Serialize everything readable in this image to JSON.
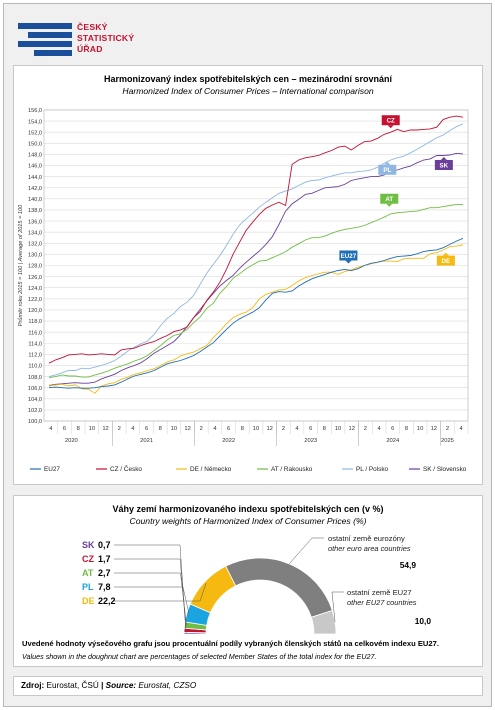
{
  "logo": {
    "lines": [
      "ČESKÝ",
      "STATISTICKÝ",
      "ÚŘAD"
    ]
  },
  "chart_data": [
    {
      "type": "line",
      "title": "Harmonizovaný index spotřebitelských cen – mezinárodní srovnání",
      "subtitle": "Harmonized Index of Consumer Prices – International comparison",
      "ylabel": "Průměr roku 2015 = 100 | Average of 2015 = 100",
      "ylim": [
        100,
        156
      ],
      "yticks": [
        "100,0",
        "102,0",
        "104,0",
        "106,0",
        "108,0",
        "110,0",
        "112,0",
        "114,0",
        "116,0",
        "118,0",
        "120,0",
        "122,0",
        "124,0",
        "126,0",
        "128,0",
        "130,0",
        "132,0",
        "134,0",
        "136,0",
        "138,0",
        "140,0",
        "142,0",
        "144,0",
        "146,0",
        "148,0",
        "150,0",
        "152,0",
        "154,0",
        "156,0"
      ],
      "x_month_labels": [
        "4",
        "6",
        "8",
        "10",
        "12",
        "2",
        "4",
        "6",
        "8",
        "10",
        "12",
        "2",
        "4",
        "6",
        "8",
        "10",
        "12",
        "2",
        "4",
        "6",
        "8",
        "10",
        "12",
        "2",
        "4",
        "6",
        "8",
        "10",
        "12",
        "2",
        "4"
      ],
      "years": [
        "2020",
        "2021",
        "2022",
        "2023",
        "2024",
        "2025"
      ],
      "grid": true,
      "legend_position": "bottom",
      "series": [
        {
          "name": "EU27",
          "short": "EU27",
          "color": "#1f6fb5",
          "values": [
            106.0,
            106.1,
            106.0,
            105.9,
            106.0,
            105.9,
            105.9,
            106.0,
            106.2,
            106.3,
            106.5,
            107.0,
            107.6,
            108.1,
            108.4,
            108.7,
            109.1,
            109.7,
            110.3,
            110.6,
            110.9,
            111.3,
            111.8,
            112.5,
            113.3,
            114.1,
            115.3,
            116.5,
            117.6,
            118.4,
            119.0,
            119.6,
            120.4,
            121.8,
            123.0,
            123.3,
            123.2,
            123.4,
            124.3,
            125.0,
            125.6,
            126.0,
            126.4,
            126.8,
            127.1,
            127.3,
            127.1,
            127.4,
            128.0,
            128.4,
            128.6,
            128.9,
            129.3,
            129.6,
            129.7,
            129.8,
            130.1,
            130.5,
            130.7,
            130.8,
            131.2,
            131.8,
            132.4,
            132.9
          ]
        },
        {
          "name": "CZ / Česko",
          "short": "CZ",
          "color": "#c41230",
          "values": [
            110.4,
            111.0,
            111.4,
            111.9,
            112.0,
            112.1,
            111.9,
            112.0,
            112.1,
            112.0,
            111.9,
            112.8,
            113.0,
            113.1,
            113.6,
            114.0,
            114.3,
            114.9,
            115.4,
            116.1,
            116.4,
            116.9,
            118.6,
            119.7,
            121.7,
            123.2,
            125.0,
            127.3,
            130.0,
            132.2,
            134.3,
            135.8,
            137.2,
            138.3,
            138.9,
            139.4,
            138.8,
            146.2,
            147.0,
            147.4,
            147.6,
            147.8,
            148.3,
            148.7,
            149.3,
            149.5,
            148.8,
            149.6,
            150.3,
            150.4,
            150.9,
            151.6,
            152.0,
            152.5,
            152.1,
            152.4,
            152.4,
            152.5,
            152.6,
            152.9,
            154.3,
            154.7,
            154.9,
            154.7
          ]
        },
        {
          "name": "DE / Německo",
          "short": "DE",
          "color": "#f6b90f",
          "values": [
            106.3,
            106.5,
            106.6,
            106.3,
            106.5,
            105.8,
            105.7,
            105.0,
            106.3,
            106.7,
            106.9,
            107.5,
            107.9,
            108.4,
            108.7,
            109.1,
            109.4,
            110.0,
            110.6,
            111.0,
            111.7,
            112.1,
            112.4,
            113.0,
            113.6,
            115.0,
            116.2,
            117.5,
            118.6,
            119.2,
            119.6,
            120.4,
            122.0,
            122.8,
            123.2,
            123.6,
            123.7,
            124.4,
            125.2,
            125.8,
            126.2,
            126.5,
            126.8,
            126.8,
            126.4,
            126.9,
            127.2,
            127.7,
            128.0,
            128.3,
            128.6,
            128.8,
            128.8,
            128.7,
            129.2,
            129.3,
            129.3,
            129.3,
            130.1,
            130.3,
            130.8,
            131.4,
            131.5,
            131.7
          ]
        },
        {
          "name": "AT / Rakousko",
          "short": "AT",
          "color": "#6fbe44",
          "values": [
            107.8,
            108.0,
            108.3,
            108.1,
            108.1,
            107.9,
            107.9,
            108.3,
            108.6,
            109.0,
            109.5,
            109.9,
            110.3,
            110.8,
            111.2,
            111.8,
            112.7,
            113.6,
            114.6,
            115.4,
            115.7,
            116.5,
            117.7,
            118.7,
            120.3,
            121.2,
            123.0,
            124.2,
            125.7,
            126.5,
            127.4,
            128.1,
            128.8,
            128.9,
            129.4,
            129.9,
            130.5,
            131.3,
            131.9,
            132.6,
            133.0,
            133.0,
            133.3,
            133.8,
            134.2,
            134.5,
            134.7,
            134.9,
            135.2,
            135.7,
            136.2,
            136.7,
            137.3,
            137.5,
            137.6,
            137.7,
            137.8,
            138.1,
            138.4,
            138.4,
            138.6,
            138.8,
            139.0,
            139.0
          ]
        },
        {
          "name": "PL / Polsko",
          "short": "PL",
          "color": "#8fb7e2",
          "values": [
            108.0,
            108.3,
            108.7,
            109.1,
            109.1,
            109.5,
            109.4,
            109.7,
            110.0,
            110.4,
            110.9,
            111.7,
            112.6,
            113.3,
            113.9,
            114.4,
            115.6,
            117.2,
            118.5,
            119.4,
            120.6,
            121.4,
            122.6,
            124.6,
            126.6,
            128.2,
            129.8,
            131.6,
            133.6,
            135.3,
            136.4,
            137.4,
            138.5,
            139.4,
            140.2,
            141.0,
            141.4,
            141.8,
            142.4,
            143.0,
            143.3,
            143.4,
            143.8,
            144.1,
            144.4,
            144.7,
            144.7,
            144.9,
            145.0,
            145.2,
            145.7,
            146.4,
            147.0,
            147.4,
            147.7,
            148.3,
            148.9,
            149.6,
            150.3,
            151.0,
            151.5,
            152.3,
            153.0,
            153.5
          ]
        },
        {
          "name": "SK / Slovensko",
          "short": "SK",
          "color": "#6a3f99",
          "values": [
            106.4,
            106.6,
            106.7,
            106.8,
            106.9,
            106.8,
            106.8,
            107.0,
            107.6,
            108.0,
            108.4,
            109.1,
            109.6,
            110.0,
            110.5,
            111.3,
            112.2,
            112.9,
            113.6,
            114.3,
            115.5,
            117.0,
            118.6,
            120.1,
            121.6,
            123.0,
            124.3,
            125.3,
            126.2,
            127.5,
            128.6,
            129.6,
            130.6,
            131.8,
            133.2,
            135.4,
            137.8,
            139.1,
            139.9,
            140.8,
            141.0,
            141.5,
            142.0,
            142.1,
            142.2,
            142.6,
            143.3,
            143.6,
            143.8,
            144.0,
            144.0,
            144.3,
            144.9,
            145.2,
            145.6,
            145.9,
            146.5,
            147.0,
            147.2,
            147.8,
            147.8,
            147.9,
            148.2,
            148.1
          ]
        }
      ]
    },
    {
      "type": "pie",
      "title": "Váhy zemí harmonizovaného indexu spotřebitelských cen (v %)",
      "subtitle": "Country weights of Harmonized Index of Consumer Prices (%)",
      "slices": [
        {
          "label": "SK",
          "value": 0.7,
          "value_text": "0,7",
          "color": "#6a3f99"
        },
        {
          "label": "CZ",
          "value": 1.7,
          "value_text": "1,7",
          "color": "#c41230"
        },
        {
          "label": "AT",
          "value": 2.7,
          "value_text": "2,7",
          "color": "#6fbe44"
        },
        {
          "label": "PL",
          "value": 7.8,
          "value_text": "7,8",
          "color": "#1aa5e0"
        },
        {
          "label": "DE",
          "value": 22.2,
          "value_text": "22,2",
          "color": "#f6b90f"
        },
        {
          "label": "ostatní země eurozóny",
          "label_en": "other euro area countries",
          "value": 54.9,
          "value_text": "54,9",
          "color": "#7f7f7f"
        },
        {
          "label": "ostatní země EU27",
          "label_en": "other EU27 countries",
          "value": 10.0,
          "value_text": "10,0",
          "color": "#c8c8c8"
        }
      ]
    }
  ],
  "notes": {
    "cz": "Uvedené hodnoty výsečového grafu jsou procentuální podíly vybraných členských států na celkovém indexu EU27.",
    "en": "Values shown in the doughnut chart are percentages of selected Member States of the total index for the EU27."
  },
  "source": {
    "label_cz": "Zdroj:",
    "text_cz": " Eurostat, ČSÚ",
    "sep": " | ",
    "label_en": "Source:",
    "text_en": " Eurostat, CZSO"
  }
}
